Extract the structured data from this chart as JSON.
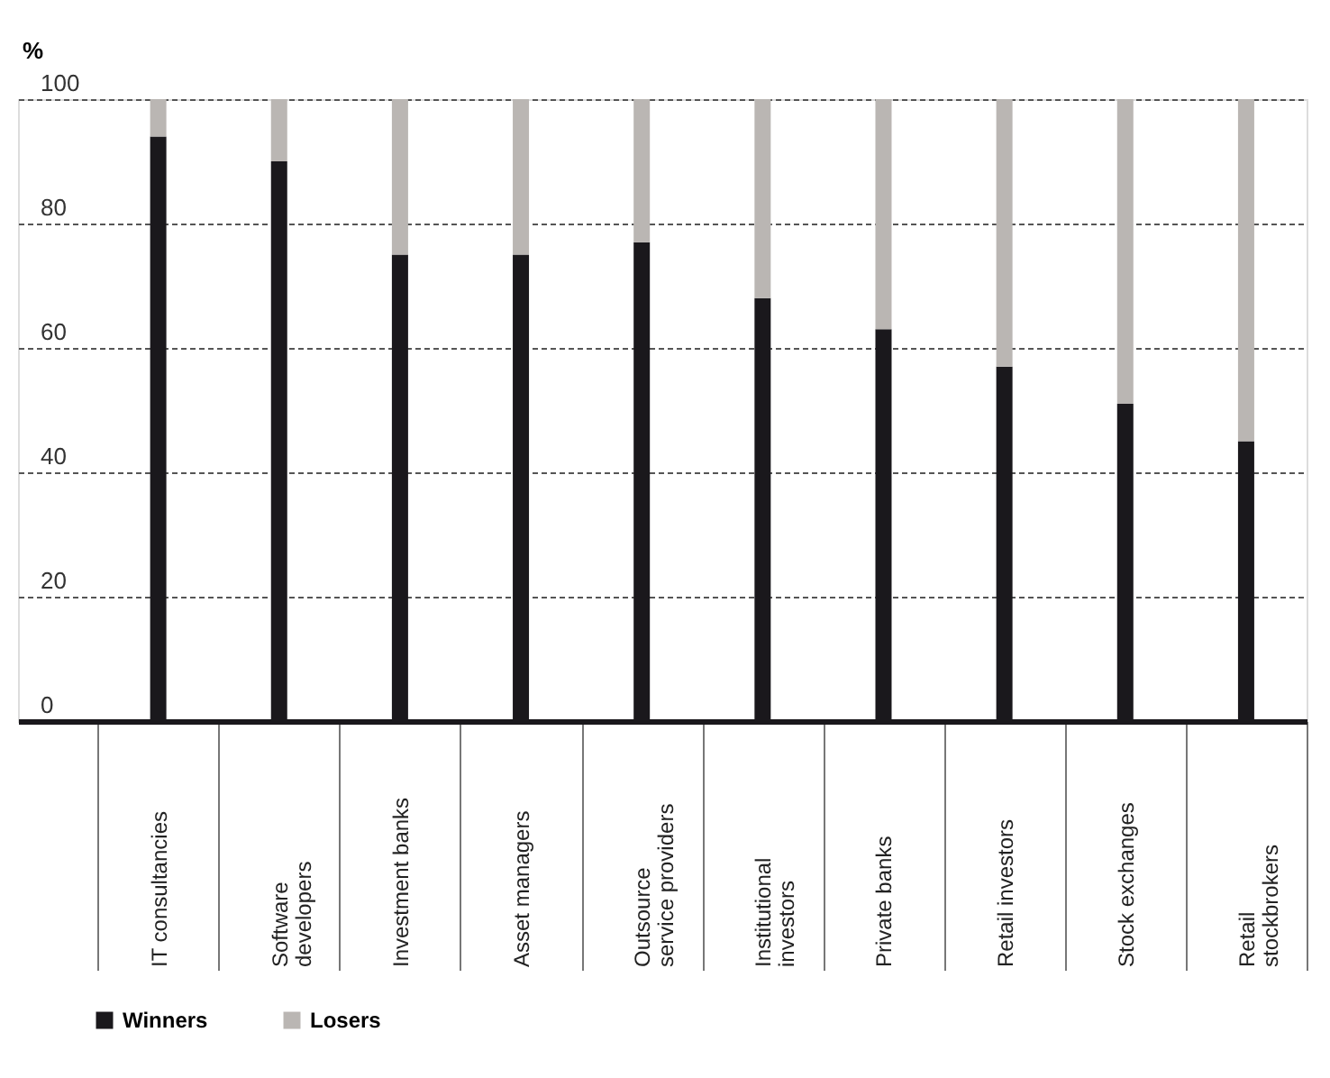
{
  "chart_data": {
    "type": "bar",
    "stacked": true,
    "ylabel": "%",
    "categories": [
      "IT consultancies",
      "Software developers",
      "Investment banks",
      "Asset managers",
      "Outsource service providers",
      "Institutional investors",
      "Private banks",
      "Retail investors",
      "Stock exchanges",
      "Retail stockbrokers"
    ],
    "series": [
      {
        "name": "Winners",
        "color": "#1a181c",
        "values": [
          94,
          90,
          75,
          75,
          77,
          68,
          63,
          57,
          51,
          45
        ]
      },
      {
        "name": "Losers",
        "color": "#bab6b3",
        "values": [
          6,
          10,
          25,
          25,
          23,
          32,
          37,
          43,
          49,
          55
        ]
      }
    ],
    "ylim": [
      0,
      100
    ],
    "yticks": [
      0,
      20,
      40,
      60,
      80,
      100
    ],
    "grid": "y",
    "legend": "bottom left"
  }
}
